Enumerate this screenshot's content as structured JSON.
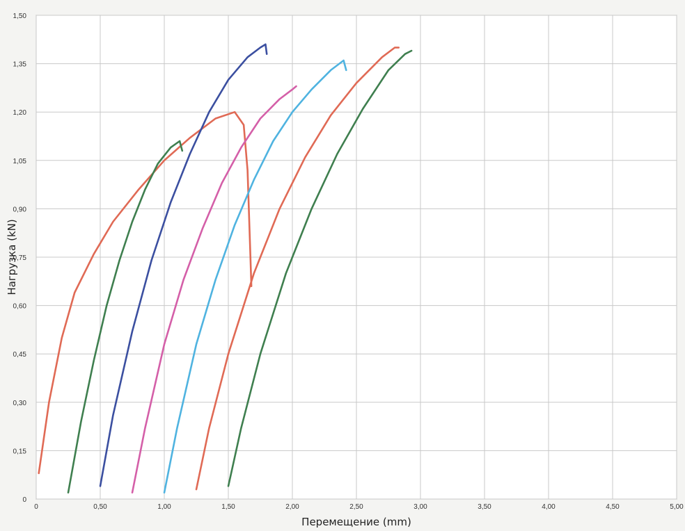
{
  "chart_data": {
    "type": "line",
    "title": "",
    "xlabel": "Перемещение (mm)",
    "ylabel": "Нагрузка (kN)",
    "xlim": [
      0,
      5.0
    ],
    "ylim": [
      0,
      1.5
    ],
    "x_ticks": [
      0,
      0.5,
      1.0,
      1.5,
      2.0,
      2.5,
      3.0,
      3.5,
      4.0,
      4.5,
      5.0
    ],
    "x_tick_labels": [
      "0",
      "0,50",
      "1,00",
      "1,50",
      "2,00",
      "2,50",
      "3,00",
      "3,50",
      "4,00",
      "4,50",
      "5,00"
    ],
    "y_ticks": [
      0,
      0.15,
      0.3,
      0.45,
      0.6,
      0.75,
      0.9,
      1.05,
      1.2,
      1.35,
      1.5
    ],
    "y_tick_labels": [
      "0",
      "0,15",
      "0,30",
      "0,45",
      "0,60",
      "0,75",
      "0,90",
      "1,05",
      "1,20",
      "1,35",
      "1,50"
    ],
    "grid": true,
    "series": [
      {
        "color": "#e06a55",
        "x": [
          0.02,
          0.1,
          0.2,
          0.3,
          0.45,
          0.6,
          0.8,
          1.0,
          1.2,
          1.4,
          1.55,
          1.62,
          1.65,
          1.67,
          1.68
        ],
        "y": [
          0.08,
          0.3,
          0.5,
          0.64,
          0.76,
          0.86,
          0.96,
          1.05,
          1.12,
          1.18,
          1.2,
          1.16,
          1.02,
          0.78,
          0.66
        ]
      },
      {
        "color": "#3f7f4f",
        "x": [
          0.25,
          0.35,
          0.45,
          0.55,
          0.65,
          0.75,
          0.85,
          0.95,
          1.05,
          1.12,
          1.14
        ],
        "y": [
          0.02,
          0.24,
          0.43,
          0.6,
          0.74,
          0.86,
          0.96,
          1.04,
          1.09,
          1.11,
          1.08
        ]
      },
      {
        "color": "#3b4fa0",
        "x": [
          0.5,
          0.6,
          0.75,
          0.9,
          1.05,
          1.2,
          1.35,
          1.5,
          1.65,
          1.75,
          1.79,
          1.8
        ],
        "y": [
          0.04,
          0.26,
          0.52,
          0.74,
          0.92,
          1.07,
          1.2,
          1.3,
          1.37,
          1.4,
          1.41,
          1.38
        ]
      },
      {
        "color": "#d45fa8",
        "x": [
          0.75,
          0.85,
          1.0,
          1.15,
          1.3,
          1.45,
          1.6,
          1.75,
          1.9,
          2.0,
          2.03
        ],
        "y": [
          0.02,
          0.22,
          0.48,
          0.68,
          0.84,
          0.98,
          1.09,
          1.18,
          1.24,
          1.27,
          1.28
        ]
      },
      {
        "color": "#4fb3e0",
        "x": [
          1.0,
          1.1,
          1.25,
          1.4,
          1.55,
          1.7,
          1.85,
          2.0,
          2.15,
          2.3,
          2.4,
          2.42
        ],
        "y": [
          0.02,
          0.22,
          0.48,
          0.68,
          0.85,
          0.99,
          1.11,
          1.2,
          1.27,
          1.33,
          1.36,
          1.33
        ]
      },
      {
        "color": "#e06a55",
        "x": [
          1.25,
          1.35,
          1.5,
          1.7,
          1.9,
          2.1,
          2.3,
          2.5,
          2.7,
          2.8,
          2.83
        ],
        "y": [
          0.03,
          0.22,
          0.45,
          0.7,
          0.9,
          1.06,
          1.19,
          1.29,
          1.37,
          1.4,
          1.4
        ]
      },
      {
        "color": "#3f7f4f",
        "x": [
          1.5,
          1.6,
          1.75,
          1.95,
          2.15,
          2.35,
          2.55,
          2.75,
          2.88,
          2.93
        ],
        "y": [
          0.04,
          0.22,
          0.45,
          0.7,
          0.9,
          1.07,
          1.21,
          1.33,
          1.38,
          1.39
        ]
      }
    ]
  }
}
